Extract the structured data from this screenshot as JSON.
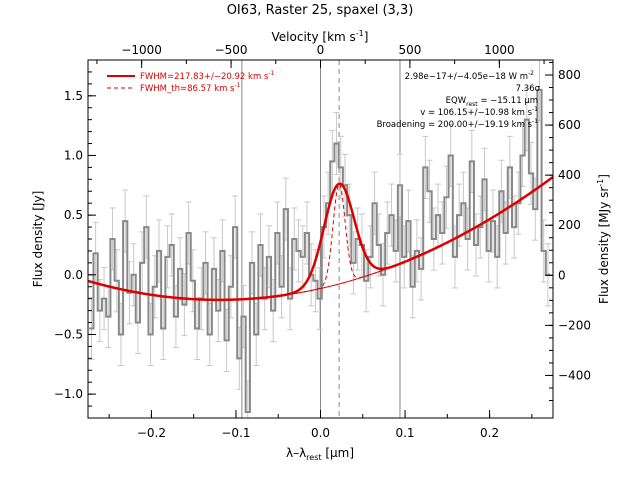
{
  "chart_data": {
    "type": "line",
    "title": "OI63, Raster 25, spaxel (3,3)",
    "xlabel": "λ–λrest [μm]",
    "xlabel_main": "λ–λ",
    "xlabel_sub": "rest",
    "xlabel_unit": " [μm]",
    "top_axis_label": "Velocity [km s⁻¹]",
    "top_axis_main": "Velocity [km s",
    "top_axis_sup": "-1",
    "top_axis_close": "]",
    "ylabel": "Flux density [Jy]",
    "right_axis_label": "Flux density [MJy sr⁻¹]",
    "right_axis_main": "Flux density [MJy sr",
    "right_axis_sup": "-1",
    "right_axis_close": "]",
    "xlim": [
      -0.275,
      0.275
    ],
    "ylim": [
      -1.2,
      1.8
    ],
    "top_xlim": [
      -1300,
      1300
    ],
    "right_ylim": [
      -570,
      860
    ],
    "x_ticks": [
      -0.2,
      -0.1,
      0.0,
      0.1,
      0.2
    ],
    "x_tick_labels": [
      "−0.2",
      "−0.1",
      "0.0",
      "0.1",
      "0.2"
    ],
    "y_ticks": [
      -1.0,
      -0.5,
      0.0,
      0.5,
      1.0,
      1.5
    ],
    "y_tick_labels": [
      "−1.0",
      "−0.5",
      "0.0",
      "0.5",
      "1.0",
      "1.5"
    ],
    "top_ticks": [
      -1000,
      -500,
      0,
      500,
      1000
    ],
    "top_tick_labels": [
      "−1000",
      "−500",
      "0",
      "500",
      "1000"
    ],
    "right_ticks": [
      -400,
      -200,
      0,
      200,
      400,
      600,
      800
    ],
    "right_tick_labels": [
      "−400",
      "−200",
      "0",
      "200",
      "400",
      "600",
      "800"
    ],
    "vertical_lines": [
      -0.093,
      0.0,
      0.094
    ],
    "line_center": 0.022,
    "legend": [
      {
        "label": "FWHM=217.83+/−20.92 km s",
        "sup": "-1",
        "style": "solid",
        "color": "#dd0000"
      },
      {
        "label": "FWHM_th=86.57 km s",
        "sup": "-1",
        "style": "dashed",
        "color": "#dd0000"
      }
    ],
    "annotations": [
      {
        "text": "2.98e−17+/−4.05e−18 W m",
        "sup": "-2"
      },
      {
        "text": "7.36σ",
        "sup": ""
      },
      {
        "text": "EQW",
        "sub": "rest",
        "tail": " = −15.11 μm",
        "sup": ""
      },
      {
        "text": "v = 106.15+/−10.98 km s",
        "sup": "-1"
      },
      {
        "text": "Broadening = 200.00+/−19.19 km s",
        "sup": "-1"
      }
    ],
    "model": {
      "baseline_min_x": -0.12,
      "baseline_min_y": -0.21,
      "baseline_curvature": 6.6,
      "gauss_amplitude": 0.84,
      "gauss_center": 0.022,
      "gauss_sigma_fit": 0.0178,
      "gauss_sigma_th": 0.0071
    },
    "series": [
      {
        "name": "",
        "style": "histogram",
        "color": "#888888",
        "x": [
          -0.271,
          -0.266,
          -0.261,
          -0.256,
          -0.251,
          -0.246,
          -0.241,
          -0.236,
          -0.231,
          -0.226,
          -0.221,
          -0.216,
          -0.211,
          -0.206,
          -0.201,
          -0.196,
          -0.191,
          -0.186,
          -0.181,
          -0.176,
          -0.171,
          -0.166,
          -0.161,
          -0.156,
          -0.151,
          -0.146,
          -0.141,
          -0.136,
          -0.131,
          -0.126,
          -0.121,
          -0.116,
          -0.111,
          -0.106,
          -0.101,
          -0.096,
          -0.091,
          -0.086,
          -0.081,
          -0.076,
          -0.071,
          -0.066,
          -0.061,
          -0.056,
          -0.051,
          -0.046,
          -0.041,
          -0.036,
          -0.031,
          -0.026,
          -0.021,
          -0.016,
          -0.011,
          -0.006,
          -0.001,
          0.004,
          0.009,
          0.014,
          0.019,
          0.024,
          0.029,
          0.034,
          0.039,
          0.044,
          0.049,
          0.054,
          0.059,
          0.064,
          0.069,
          0.074,
          0.079,
          0.084,
          0.089,
          0.094,
          0.099,
          0.104,
          0.109,
          0.114,
          0.119,
          0.124,
          0.129,
          0.134,
          0.139,
          0.144,
          0.149,
          0.154,
          0.159,
          0.164,
          0.169,
          0.174,
          0.179,
          0.184,
          0.189,
          0.194,
          0.199,
          0.204,
          0.209,
          0.214,
          0.219,
          0.224,
          0.229,
          0.234,
          0.239,
          0.244,
          0.249,
          0.254,
          0.259,
          0.264,
          0.269
        ],
        "y": [
          -0.45,
          0.18,
          -0.3,
          -0.2,
          -0.35,
          0.3,
          -0.05,
          -0.5,
          0.45,
          -0.15,
          0.0,
          -0.4,
          0.1,
          0.4,
          -0.5,
          -0.1,
          0.2,
          -0.45,
          0.15,
          0.25,
          -0.35,
          0.05,
          -0.25,
          0.35,
          -0.05,
          -0.45,
          -0.2,
          0.1,
          -0.5,
          0.05,
          -0.3,
          0.2,
          -0.55,
          -0.1,
          0.4,
          -0.7,
          -0.35,
          -1.15,
          0.1,
          -0.5,
          0.25,
          -0.2,
          0.15,
          -0.3,
          0.35,
          -0.1,
          0.55,
          -0.2,
          0.3,
          0.2,
          0.15,
          0.35,
          0.0,
          -0.05,
          -0.2,
          0.4,
          0.6,
          0.95,
          1.1,
          0.9,
          0.75,
          0.5,
          0.1,
          0.3,
          0.25,
          -0.05,
          0.15,
          0.6,
          0.25,
          0.0,
          0.35,
          0.5,
          0.2,
          0.75,
          0.15,
          0.45,
          -0.1,
          0.2,
          0.05,
          0.9,
          0.7,
          0.3,
          0.5,
          0.35,
          0.65,
          1.0,
          0.15,
          0.5,
          0.6,
          0.3,
          0.95,
          0.25,
          0.4,
          0.8,
          0.2,
          0.45,
          0.15,
          0.7,
          0.35,
          0.9,
          0.4,
          0.6,
          1.0,
          1.3,
          0.85,
          0.55,
          1.55,
          0.2,
          0.0
        ],
        "err": 0.26
      }
    ]
  }
}
